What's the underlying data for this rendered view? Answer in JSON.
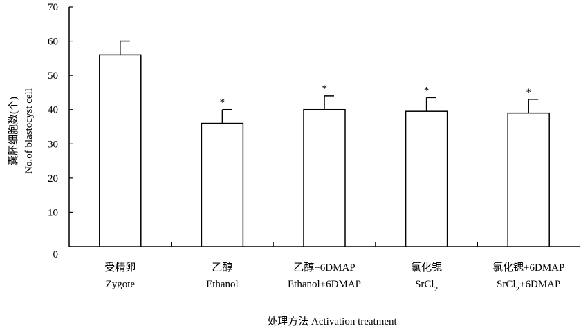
{
  "chart_data": {
    "type": "bar",
    "title": "",
    "xlabel": "处理方法 Activation treatment",
    "ylabel_lines": [
      "囊胚细胞数(个)",
      "No.of blastocyst cell"
    ],
    "ylim": [
      0,
      70
    ],
    "yticks": [
      0,
      10,
      20,
      30,
      40,
      50,
      60,
      70
    ],
    "grid": false,
    "legend": "none",
    "colors": {
      "bar_fill": "#ffffff",
      "stroke": "#000000"
    },
    "categories": [
      {
        "line1": "受精卵",
        "line2": "Zygote",
        "line2_sub": "",
        "line2_rest": ""
      },
      {
        "line1": "乙醇",
        "line2": "Ethanol",
        "line2_sub": "",
        "line2_rest": ""
      },
      {
        "line1": "乙醇+6DMAP",
        "line2": "Ethanol+6DMAP",
        "line2_sub": "",
        "line2_rest": ""
      },
      {
        "line1": "氯化锶",
        "line2": "SrCl",
        "line2_sub": "2",
        "line2_rest": ""
      },
      {
        "line1": "氯化锶+6DMAP",
        "line2": "SrCl",
        "line2_sub": "2",
        "line2_rest": "+6DMAP"
      }
    ],
    "values": [
      56.0,
      36.0,
      40.0,
      39.5,
      39.0
    ],
    "error_plus": [
      4.0,
      4.0,
      4.0,
      4.0,
      4.0
    ],
    "significance": [
      "",
      "*",
      "*",
      "*",
      "*"
    ]
  }
}
